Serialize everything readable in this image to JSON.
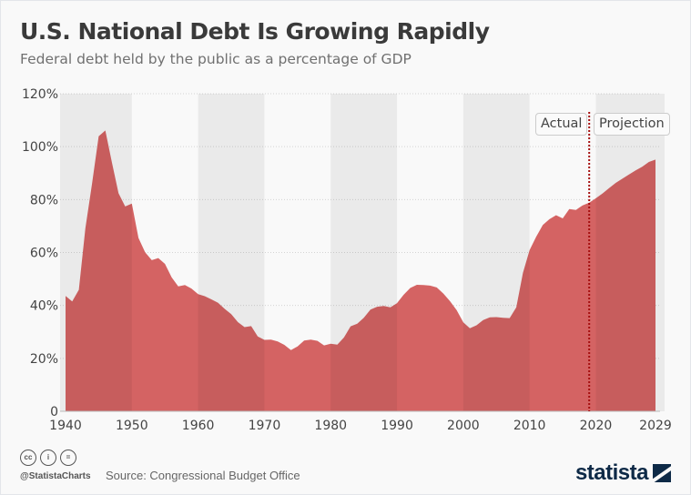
{
  "title": "U.S. National Debt Is Growing Rapidly",
  "subtitle": "Federal debt held by the public as a percentage of GDP",
  "footer": {
    "handle": "@StatistaCharts",
    "source": "Source: Congressional Budget Office",
    "logo": "statista",
    "license_icons": [
      "cc-icon",
      "attribution-icon",
      "no-derivatives-icon"
    ]
  },
  "chart_data": {
    "type": "area",
    "title": "U.S. National Debt Is Growing Rapidly",
    "subtitle": "Federal debt held by the public as a percentage of GDP",
    "xlabel": "",
    "ylabel": "",
    "ylim": [
      0,
      120
    ],
    "xlim": [
      1940,
      2029
    ],
    "y_ticks": [
      "0",
      "20%",
      "40%",
      "60%",
      "80%",
      "100%",
      "120%"
    ],
    "x_ticks": [
      "1940",
      "1950",
      "1960",
      "1970",
      "1980",
      "1990",
      "2000",
      "2010",
      "2020",
      "2029"
    ],
    "grid": true,
    "fill_color": "#d46363",
    "annotations": {
      "divider_year": 2019,
      "divider_color": "#a50f0f",
      "left_label": "Actual",
      "right_label": "Projection"
    },
    "x": [
      1940,
      1941,
      1942,
      1943,
      1944,
      1945,
      1946,
      1947,
      1948,
      1949,
      1950,
      1951,
      1952,
      1953,
      1954,
      1955,
      1956,
      1957,
      1958,
      1959,
      1960,
      1961,
      1962,
      1963,
      1964,
      1965,
      1966,
      1967,
      1968,
      1969,
      1970,
      1971,
      1972,
      1973,
      1974,
      1975,
      1976,
      1977,
      1978,
      1979,
      1980,
      1981,
      1982,
      1983,
      1984,
      1985,
      1986,
      1987,
      1988,
      1989,
      1990,
      1991,
      1992,
      1993,
      1994,
      1995,
      1996,
      1997,
      1998,
      1999,
      2000,
      2001,
      2002,
      2003,
      2004,
      2005,
      2006,
      2007,
      2008,
      2009,
      2010,
      2011,
      2012,
      2013,
      2014,
      2015,
      2016,
      2017,
      2018,
      2019,
      2020,
      2021,
      2022,
      2023,
      2024,
      2025,
      2026,
      2027,
      2028,
      2029
    ],
    "values": [
      43.6,
      41.5,
      45.9,
      69.2,
      86.0,
      103.9,
      106.1,
      93.9,
      82.4,
      77.4,
      78.5,
      65.5,
      60.1,
      57.1,
      57.9,
      55.7,
      50.6,
      47.2,
      47.7,
      46.4,
      44.3,
      43.5,
      42.3,
      41.0,
      38.7,
      36.7,
      33.7,
      31.8,
      32.2,
      28.3,
      27.0,
      27.1,
      26.4,
      25.1,
      23.1,
      24.5,
      26.7,
      27.1,
      26.6,
      24.9,
      25.5,
      25.2,
      27.9,
      32.1,
      33.1,
      35.3,
      38.4,
      39.5,
      39.8,
      39.3,
      40.8,
      44.0,
      46.6,
      47.8,
      47.7,
      47.5,
      46.8,
      44.5,
      41.6,
      38.2,
      33.6,
      31.4,
      32.5,
      34.5,
      35.5,
      35.6,
      35.3,
      35.2,
      39.3,
      52.3,
      60.9,
      65.9,
      70.4,
      72.6,
      74.1,
      72.9,
      76.4,
      76.1,
      77.8,
      78.8,
      80.5,
      82.3,
      84.3,
      86.3,
      87.9,
      89.5,
      91.0,
      92.4,
      94.2,
      95.1
    ]
  }
}
